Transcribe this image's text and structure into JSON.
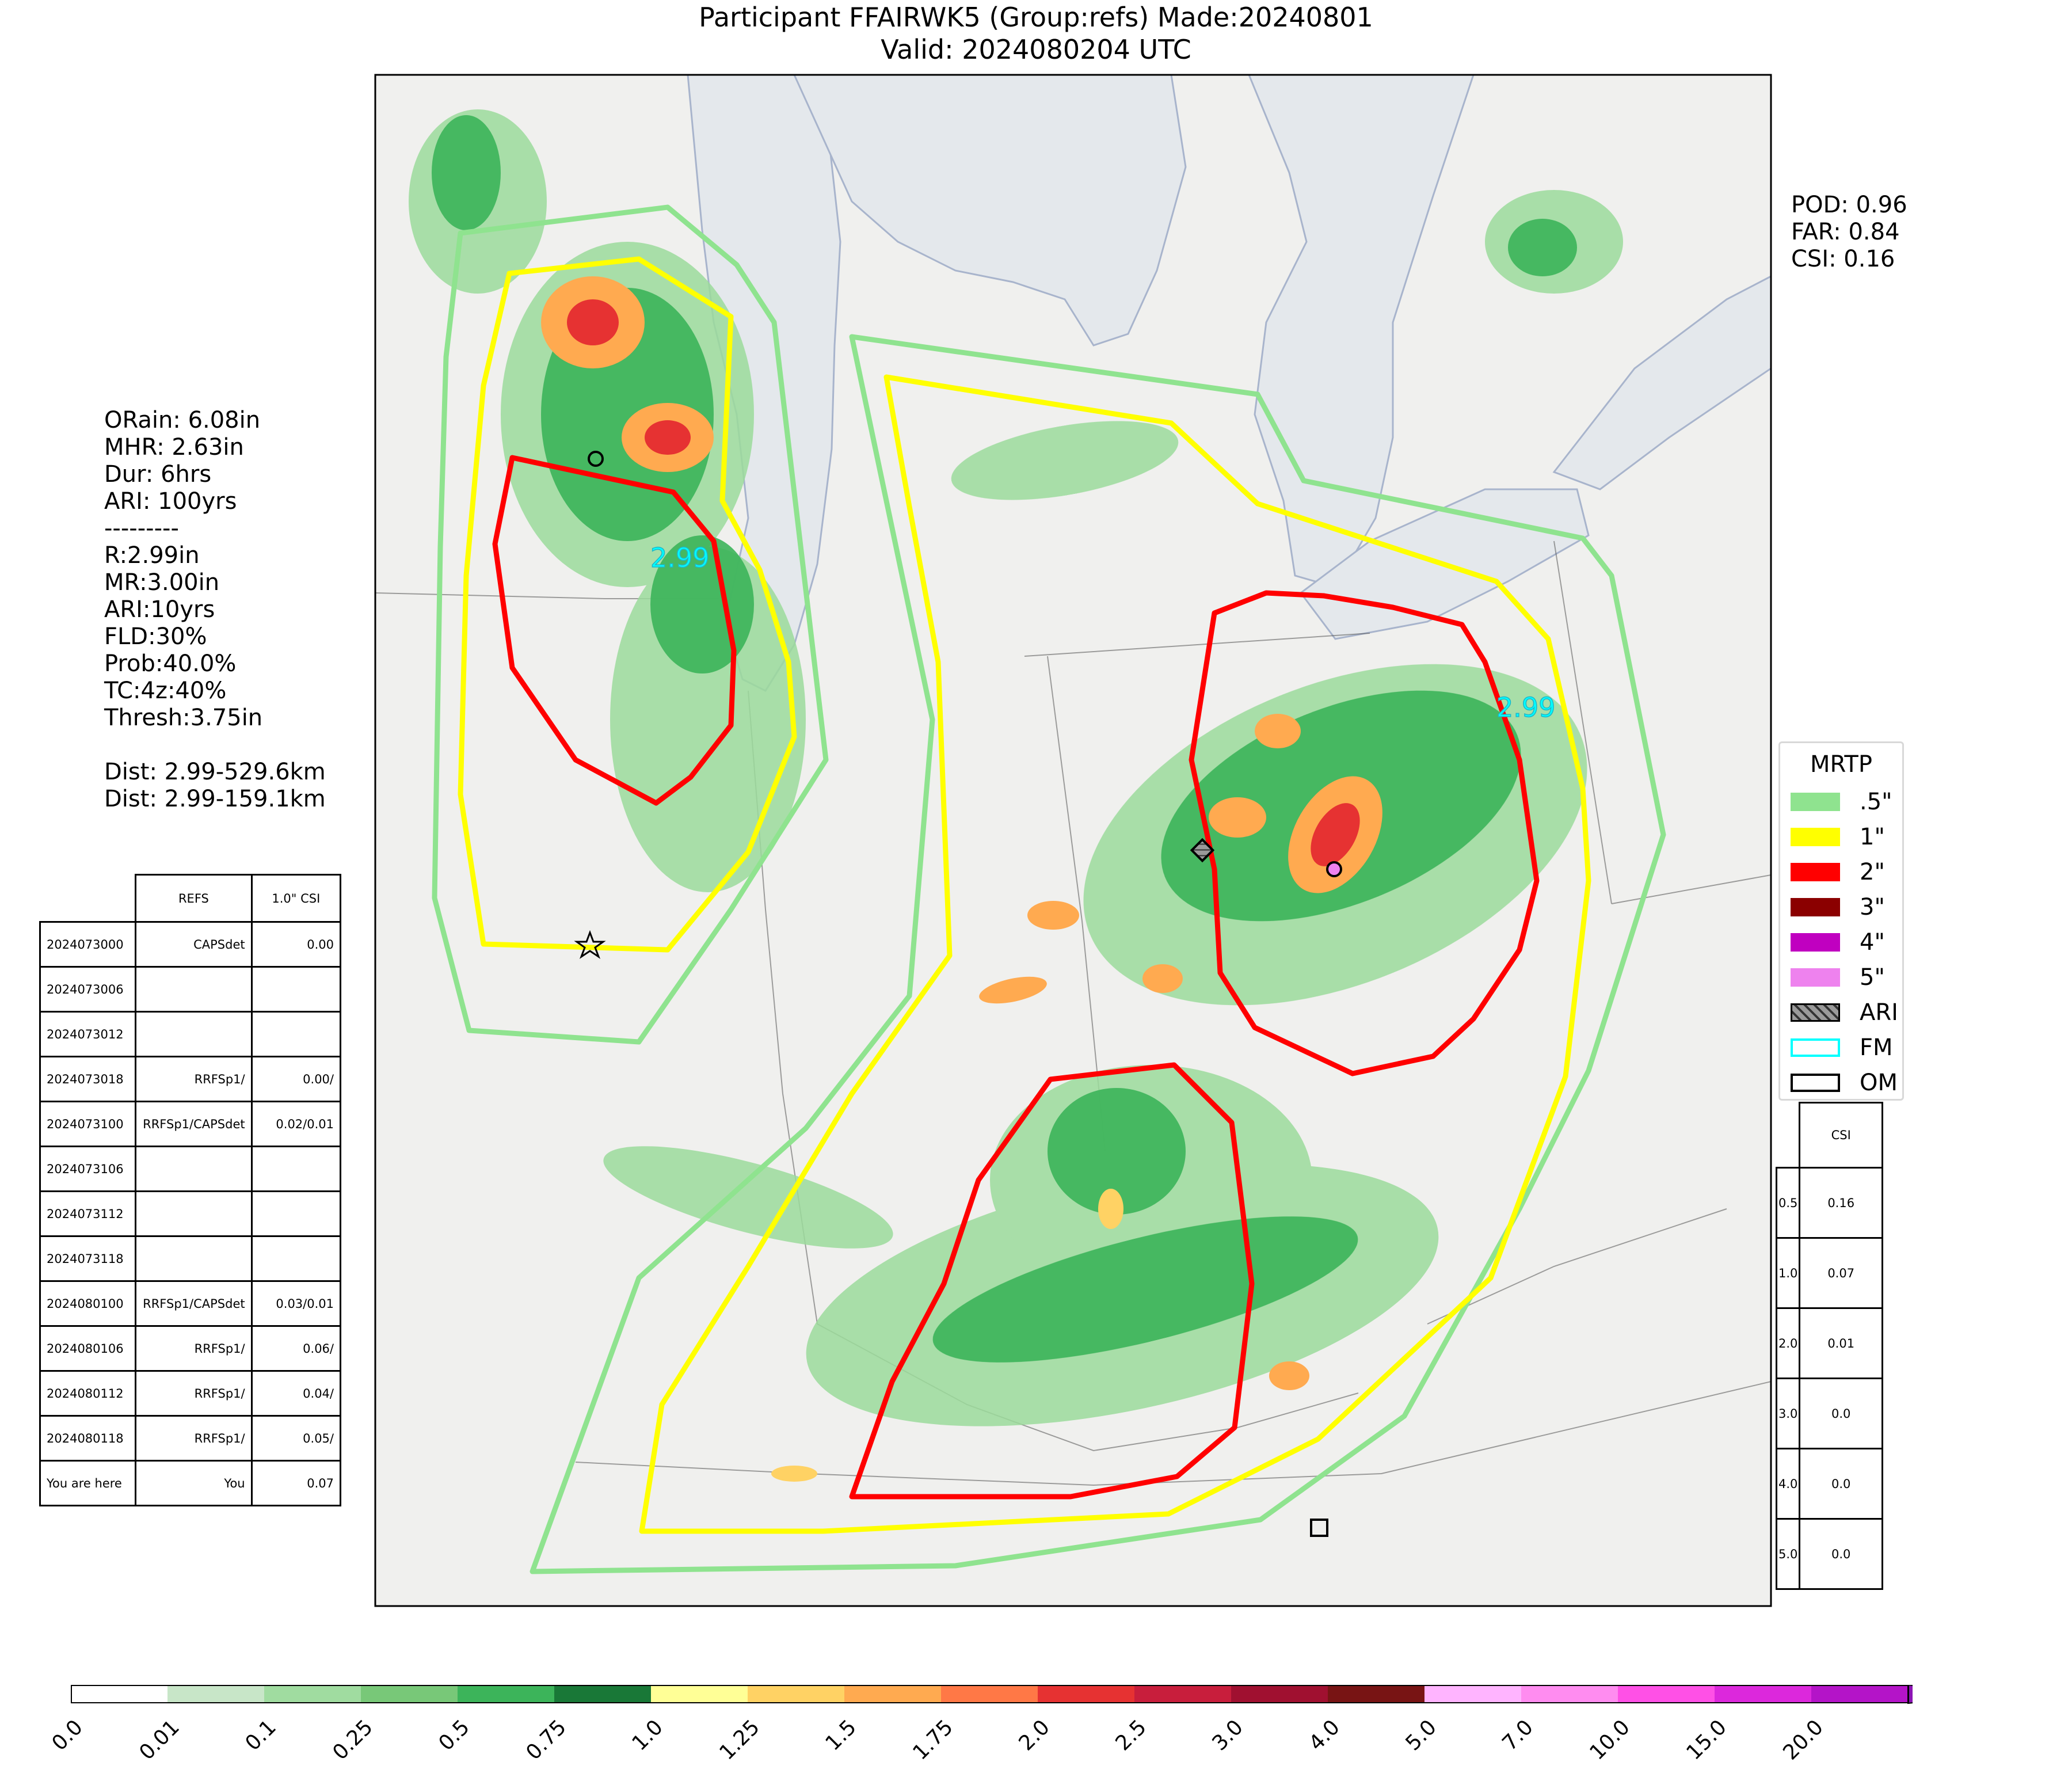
{
  "title": {
    "line1": "Participant FFAIRWK5 (Group:refs) Made:20240801",
    "line2": "Valid: 2024080204 UTC"
  },
  "verification": {
    "pod": "POD: 0.96",
    "far": "FAR: 0.84",
    "csi": "CSI: 0.16"
  },
  "event_info": {
    "lines": [
      "ORain: 6.08in",
      "MHR: 2.63in",
      "Dur: 6hrs",
      "ARI: 100yrs",
      "---------",
      "R:2.99in",
      "MR:3.00in",
      "ARI:10yrs",
      "FLD:30%",
      "Prob:40.0%",
      "TC:4z:40%",
      "Thresh:3.75in",
      "",
      "Dist: 2.99-529.6km",
      "Dist: 2.99-159.1km"
    ]
  },
  "model_table": {
    "headers": [
      "",
      "REFS",
      "1.0\" CSI"
    ],
    "rows": [
      [
        "2024073000",
        "CAPSdet",
        "0.00"
      ],
      [
        "2024073006",
        "",
        ""
      ],
      [
        "2024073012",
        "",
        ""
      ],
      [
        "2024073018",
        "RRFSp1/",
        "0.00/"
      ],
      [
        "2024073100",
        "RRFSp1/CAPSdet",
        "0.02/0.01"
      ],
      [
        "2024073106",
        "",
        ""
      ],
      [
        "2024073112",
        "",
        ""
      ],
      [
        "2024073118",
        "",
        ""
      ],
      [
        "2024080100",
        "RRFSp1/CAPSdet",
        "0.03/0.01"
      ],
      [
        "2024080106",
        "RRFSp1/",
        "0.06/"
      ],
      [
        "2024080112",
        "RRFSp1/",
        "0.04/"
      ],
      [
        "2024080118",
        "RRFSp1/",
        "0.05/"
      ],
      [
        "You are here",
        "You",
        "0.07"
      ]
    ]
  },
  "threshold_csi_table": {
    "header": "CSI",
    "rows": [
      [
        "0.5",
        "0.16"
      ],
      [
        "1.0",
        "0.07"
      ],
      [
        "2.0",
        "0.01"
      ],
      [
        "3.0",
        "0.0"
      ],
      [
        "4.0",
        "0.0"
      ],
      [
        "5.0",
        "0.0"
      ]
    ]
  },
  "legend": {
    "title": "MRTP",
    "items": [
      {
        "label": ".5\"",
        "color": "#8fe38f",
        "style": "fill"
      },
      {
        "label": "1\"",
        "color": "#ffff00",
        "style": "fill"
      },
      {
        "label": "2\"",
        "color": "#ff0000",
        "style": "fill"
      },
      {
        "label": "3\"",
        "color": "#8b0000",
        "style": "fill"
      },
      {
        "label": "4\"",
        "color": "#c000c0",
        "style": "fill"
      },
      {
        "label": "5\"",
        "color": "#ee82ee",
        "style": "fill"
      },
      {
        "label": "ARI",
        "color": "#808080",
        "style": "hatch"
      },
      {
        "label": "FM",
        "color": "#00ffff",
        "style": "outline"
      },
      {
        "label": "OM",
        "color": "#000000",
        "style": "outline"
      }
    ]
  },
  "map_labels": {
    "fm_west": "2.99",
    "fm_east": "2.99"
  },
  "colorbar": {
    "ticks": [
      "0.0",
      "0.01",
      "0.1",
      "0.25",
      "0.5",
      "0.75",
      "1.0",
      "1.25",
      "1.5",
      "1.75",
      "2.0",
      "2.5",
      "3.0",
      "4.0",
      "5.0",
      "7.0",
      "10.0",
      "15.0",
      "20.0"
    ],
    "colors": [
      "#ffffff",
      "#c8e6c8",
      "#a0dca0",
      "#78c878",
      "#3cb45a",
      "#197837",
      "#ffff96",
      "#ffd264",
      "#ffaa50",
      "#ff7846",
      "#e63232",
      "#c81e3c",
      "#a01030",
      "#781414",
      "#ffb4ff",
      "#ff8cf0",
      "#ff50e6",
      "#dc28dc",
      "#b414c8",
      "#8c14b4"
    ]
  }
}
